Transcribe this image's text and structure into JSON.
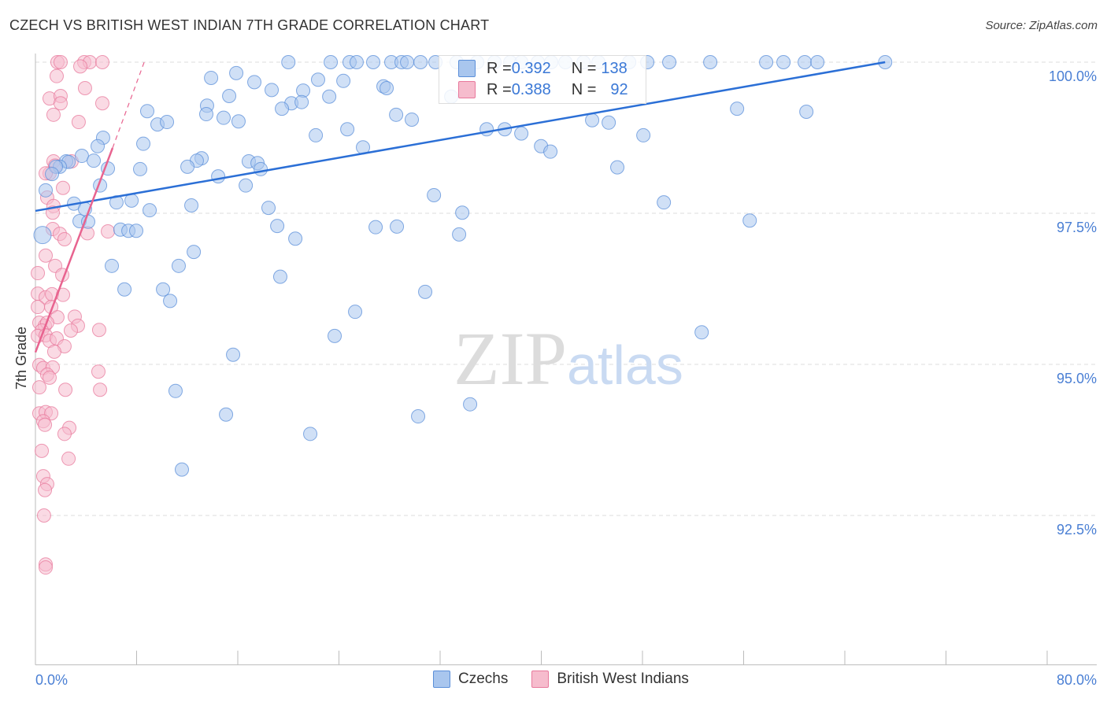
{
  "title": "CZECH VS BRITISH WEST INDIAN 7TH GRADE CORRELATION CHART",
  "source": "Source: ZipAtlas.com",
  "watermark": "ZIPatlas",
  "colors": {
    "czechs": "#5b8fd9",
    "czechs_fill": "#a9c6ee",
    "bwi": "#e8799c",
    "bwi_fill": "#f6bccd",
    "trend_blue": "#2b6fd6",
    "trend_pink": "#e8638f"
  },
  "stats": [
    {
      "r_label": "R = ",
      "r": "0.392",
      "n_label": "N = ",
      "n": "138"
    },
    {
      "r_label": "R = ",
      "r": "0.388",
      "n_label": "N = ",
      "n": "92"
    }
  ],
  "chart_data": {
    "type": "scatter",
    "title": "CZECH VS BRITISH WEST INDIAN 7TH GRADE CORRELATION CHART",
    "xlabel": "",
    "ylabel": "7th Grade",
    "xlim": [
      0,
      80
    ],
    "ylim": [
      90.03,
      100.14
    ],
    "x_tick_labels": [
      "0.0%",
      "80.0%"
    ],
    "y_ticks": [
      100,
      97.5,
      95,
      92.5
    ],
    "y_tick_labels": [
      "100.0%",
      "97.5%",
      "95.0%",
      "92.5%"
    ],
    "grid": true,
    "legend": [
      "Czechs",
      "British West Indians"
    ],
    "legend_placement": "bottom",
    "series": [
      {
        "name": "Czechs",
        "r": 0.392,
        "n": 138,
        "trend": [
          [
            0,
            97.54
          ],
          [
            67.19,
            100.0
          ]
        ],
        "points": [
          [
            20.0,
            100
          ],
          [
            23.35,
            100
          ],
          [
            24.84,
            100
          ],
          [
            25.4,
            100
          ],
          [
            26.71,
            100
          ],
          [
            28.14,
            100
          ],
          [
            28.95,
            100
          ],
          [
            29.39,
            100
          ],
          [
            30.45,
            100
          ],
          [
            31.63,
            100
          ],
          [
            33.31,
            100
          ],
          [
            34.93,
            100
          ],
          [
            36.3,
            100
          ],
          [
            37.55,
            100
          ],
          [
            38.42,
            100
          ],
          [
            39.73,
            100
          ],
          [
            40.78,
            100
          ],
          [
            41.91,
            100
          ],
          [
            43.34,
            100
          ],
          [
            44.52,
            100
          ],
          [
            46.95,
            100
          ],
          [
            48.38,
            100
          ],
          [
            50.12,
            100
          ],
          [
            53.36,
            100
          ],
          [
            57.78,
            100
          ],
          [
            59.15,
            100
          ],
          [
            60.83,
            100
          ],
          [
            61.83,
            100
          ],
          [
            67.19,
            100
          ],
          [
            13.89,
            99.74
          ],
          [
            15.88,
            99.82
          ],
          [
            17.31,
            99.67
          ],
          [
            18.68,
            99.54
          ],
          [
            21.17,
            99.53
          ],
          [
            22.35,
            99.71
          ],
          [
            24.35,
            99.69
          ],
          [
            27.52,
            99.6
          ],
          [
            27.77,
            99.57
          ],
          [
            23.23,
            99.43
          ],
          [
            15.32,
            99.44
          ],
          [
            20.24,
            99.32
          ],
          [
            21.05,
            99.34
          ],
          [
            19.49,
            99.23
          ],
          [
            32.88,
            99.43
          ],
          [
            8.84,
            99.19
          ],
          [
            13.57,
            99.28
          ],
          [
            13.51,
            99.14
          ],
          [
            14.88,
            99.08
          ],
          [
            16.06,
            99.02
          ],
          [
            9.65,
            98.97
          ],
          [
            10.4,
            99.01
          ],
          [
            28.52,
            99.13
          ],
          [
            29.76,
            99.05
          ],
          [
            24.66,
            98.89
          ],
          [
            22.17,
            98.79
          ],
          [
            35.68,
            98.89
          ],
          [
            37.11,
            98.89
          ],
          [
            38.42,
            98.82
          ],
          [
            44.02,
            99.04
          ],
          [
            45.33,
            99.0
          ],
          [
            48.07,
            98.79
          ],
          [
            55.48,
            99.23
          ],
          [
            60.96,
            99.18
          ],
          [
            8.53,
            98.65
          ],
          [
            5.35,
            98.75
          ],
          [
            4.92,
            98.61
          ],
          [
            3.67,
            98.45
          ],
          [
            4.61,
            98.37
          ],
          [
            2.43,
            98.36
          ],
          [
            2.62,
            98.35
          ],
          [
            1.93,
            98.27
          ],
          [
            1.62,
            98.27
          ],
          [
            1.31,
            98.15
          ],
          [
            0.81,
            97.88
          ],
          [
            13.14,
            98.41
          ],
          [
            12.76,
            98.37
          ],
          [
            12.02,
            98.27
          ],
          [
            16.87,
            98.36
          ],
          [
            17.56,
            98.33
          ],
          [
            17.81,
            98.23
          ],
          [
            14.45,
            98.11
          ],
          [
            16.63,
            97.96
          ],
          [
            25.9,
            98.59
          ],
          [
            39.98,
            98.61
          ],
          [
            40.72,
            98.52
          ],
          [
            46.01,
            98.26
          ],
          [
            8.28,
            98.23
          ],
          [
            5.73,
            98.24
          ],
          [
            5.11,
            97.96
          ],
          [
            31.51,
            97.8
          ],
          [
            3.05,
            97.66
          ],
          [
            6.41,
            97.68
          ],
          [
            7.6,
            97.71
          ],
          [
            9.03,
            97.55
          ],
          [
            3.92,
            97.57
          ],
          [
            12.33,
            97.63
          ],
          [
            18.43,
            97.59
          ],
          [
            33.75,
            97.51
          ],
          [
            49.69,
            97.68
          ],
          [
            3.49,
            97.37
          ],
          [
            4.17,
            97.36
          ],
          [
            6.72,
            97.23
          ],
          [
            7.35,
            97.21
          ],
          [
            7.97,
            97.21
          ],
          [
            19.12,
            97.29
          ],
          [
            26.9,
            97.27
          ],
          [
            28.58,
            97.28
          ],
          [
            33.5,
            97.15
          ],
          [
            56.48,
            97.38
          ],
          [
            0.56,
            97.14
          ],
          [
            20.55,
            97.08
          ],
          [
            12.52,
            96.86
          ],
          [
            11.33,
            96.63
          ],
          [
            6.04,
            96.63
          ],
          [
            19.36,
            96.45
          ],
          [
            7.04,
            96.24
          ],
          [
            10.09,
            96.24
          ],
          [
            10.65,
            96.05
          ],
          [
            30.82,
            96.2
          ],
          [
            25.28,
            95.87
          ],
          [
            52.68,
            95.53
          ],
          [
            23.66,
            95.47
          ],
          [
            15.63,
            95.16
          ],
          [
            11.08,
            94.56
          ],
          [
            15.07,
            94.17
          ],
          [
            34.37,
            94.34
          ],
          [
            30.26,
            94.14
          ],
          [
            21.73,
            93.85
          ],
          [
            11.58,
            93.26
          ]
        ]
      },
      {
        "name": "British West Indians",
        "r": 0.388,
        "n": 92,
        "trend": [
          [
            0,
            95.2
          ],
          [
            6.1,
            98.58
          ]
        ],
        "trend_extension": [
          [
            6.1,
            98.58
          ],
          [
            8.6,
            100.0
          ]
        ],
        "points": [
          [
            1.74,
            100
          ],
          [
            1.99,
            100
          ],
          [
            3.86,
            100
          ],
          [
            4.3,
            100
          ],
          [
            5.29,
            100
          ],
          [
            3.55,
            99.93
          ],
          [
            1.68,
            99.77
          ],
          [
            3.92,
            99.57
          ],
          [
            1.12,
            99.4
          ],
          [
            1.99,
            99.44
          ],
          [
            1.99,
            99.32
          ],
          [
            5.29,
            99.32
          ],
          [
            1.43,
            99.13
          ],
          [
            3.42,
            99.01
          ],
          [
            1.43,
            98.36
          ],
          [
            1.56,
            98.29
          ],
          [
            2.86,
            98.36
          ],
          [
            1.12,
            98.16
          ],
          [
            0.81,
            98.16
          ],
          [
            2.18,
            97.92
          ],
          [
            0.93,
            97.76
          ],
          [
            1.43,
            97.62
          ],
          [
            1.37,
            97.51
          ],
          [
            1.37,
            97.24
          ],
          [
            1.93,
            97.16
          ],
          [
            2.3,
            97.07
          ],
          [
            4.11,
            97.17
          ],
          [
            5.73,
            97.2
          ],
          [
            0.81,
            96.8
          ],
          [
            1.56,
            96.63
          ],
          [
            2.12,
            96.48
          ],
          [
            0.19,
            96.51
          ],
          [
            0.19,
            96.17
          ],
          [
            0.81,
            96.11
          ],
          [
            1.31,
            96.16
          ],
          [
            2.18,
            96.15
          ],
          [
            1.25,
            95.95
          ],
          [
            1.74,
            95.78
          ],
          [
            0.19,
            95.95
          ],
          [
            3.11,
            95.79
          ],
          [
            0.31,
            95.69
          ],
          [
            0.75,
            95.64
          ],
          [
            0.93,
            95.69
          ],
          [
            0.5,
            95.56
          ],
          [
            0.19,
            95.47
          ],
          [
            0.81,
            95.48
          ],
          [
            3.36,
            95.64
          ],
          [
            5.04,
            95.57
          ],
          [
            2.8,
            95.56
          ],
          [
            1.12,
            95.39
          ],
          [
            1.68,
            95.43
          ],
          [
            2.3,
            95.3
          ],
          [
            1.49,
            95.21
          ],
          [
            0.31,
            94.99
          ],
          [
            0.62,
            94.94
          ],
          [
            1.37,
            94.95
          ],
          [
            0.93,
            94.83
          ],
          [
            1.12,
            94.78
          ],
          [
            0.31,
            94.62
          ],
          [
            2.37,
            94.58
          ],
          [
            4.98,
            94.88
          ],
          [
            5.11,
            94.58
          ],
          [
            0.31,
            94.19
          ],
          [
            0.81,
            94.21
          ],
          [
            1.25,
            94.19
          ],
          [
            0.62,
            94.06
          ],
          [
            0.75,
            94.0
          ],
          [
            2.68,
            93.95
          ],
          [
            2.3,
            93.85
          ],
          [
            0.5,
            93.57
          ],
          [
            2.62,
            93.44
          ],
          [
            0.62,
            93.15
          ],
          [
            0.93,
            93.02
          ],
          [
            0.75,
            92.92
          ],
          [
            0.68,
            92.5
          ],
          [
            0.81,
            91.69
          ],
          [
            0.81,
            91.64
          ]
        ]
      }
    ]
  }
}
